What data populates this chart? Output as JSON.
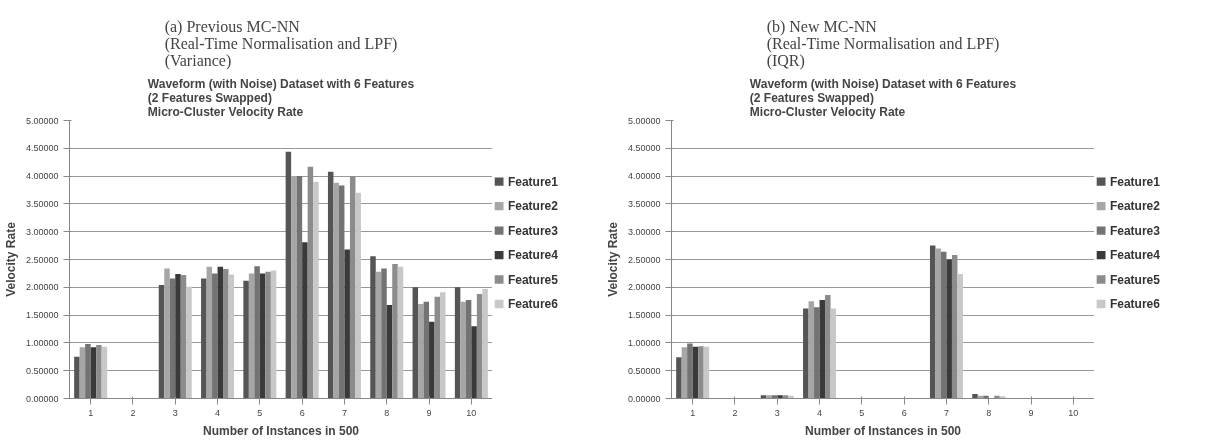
{
  "chart_data": [
    {
      "type": "bar",
      "title": "(a) Previous MC-NN\n(Real-Time Normalisation and LPF)\n(Variance)",
      "subtitle": "Waveform (with Noise) Dataset with 6 Features\n(2 Features Swapped)\nMicro-Cluster Velocity Rate",
      "xlabel": "Number of Instances in 500",
      "ylabel": "Velocity Rate",
      "categories": [
        "1",
        "2",
        "3",
        "4",
        "5",
        "6",
        "7",
        "8",
        "9",
        "10"
      ],
      "series": [
        {
          "name": "Feature1",
          "color": "#555555",
          "values": [
            0.75,
            0,
            2.04,
            2.16,
            2.12,
            4.44,
            4.08,
            2.56,
            2.0,
            2.0
          ]
        },
        {
          "name": "Feature2",
          "color": "#a6a6a6",
          "values": [
            0.92,
            0,
            2.34,
            2.37,
            2.25,
            4.0,
            3.88,
            2.28,
            1.7,
            1.74
          ]
        },
        {
          "name": "Feature3",
          "color": "#737373",
          "values": [
            0.98,
            0,
            2.16,
            2.25,
            2.38,
            4.0,
            3.83,
            2.34,
            1.74,
            1.77
          ]
        },
        {
          "name": "Feature4",
          "color": "#3a3a3a",
          "values": [
            0.92,
            0,
            2.24,
            2.37,
            2.25,
            2.81,
            2.68,
            1.68,
            1.38,
            1.3
          ]
        },
        {
          "name": "Feature5",
          "color": "#8c8c8c",
          "values": [
            0.96,
            0,
            2.22,
            2.33,
            2.28,
            4.17,
            4.0,
            2.42,
            1.83,
            1.88
          ]
        },
        {
          "name": "Feature6",
          "color": "#c8c8c8",
          "values": [
            0.93,
            0,
            2.01,
            2.23,
            2.3,
            3.9,
            3.7,
            2.37,
            1.91,
            1.97
          ]
        }
      ],
      "ylim": [
        0,
        5
      ],
      "yticks": [
        {
          "value": 0,
          "label": "0.00000"
        },
        {
          "value": 0.5,
          "label": "0.50000"
        },
        {
          "value": 1,
          "label": "1.00000"
        },
        {
          "value": 1.5,
          "label": "1.50000"
        },
        {
          "value": 2,
          "label": "2.00000"
        },
        {
          "value": 2.5,
          "label": "2.50000"
        },
        {
          "value": 3,
          "label": "3.00000"
        },
        {
          "value": 3.5,
          "label": "3.50000"
        },
        {
          "value": 4,
          "label": "4.00000"
        },
        {
          "value": 4.5,
          "label": "4.50000"
        },
        {
          "value": 5,
          "label": "5.00000"
        }
      ],
      "grid": "y",
      "legend": "right"
    },
    {
      "type": "bar",
      "title": "(b) New MC-NN\n(Real-Time Normalisation and LPF)\n(IQR)",
      "subtitle": "Waveform (with Noise) Dataset with 6 Features\n(2 Features Swapped)\nMicro-Cluster Velocity Rate",
      "xlabel": "Number of Instances in 500",
      "ylabel": "Velocity Rate",
      "categories": [
        "1",
        "2",
        "3",
        "4",
        "5",
        "6",
        "7",
        "8",
        "9",
        "10"
      ],
      "series": [
        {
          "name": "Feature1",
          "color": "#555555",
          "values": [
            0.74,
            0,
            0.06,
            1.62,
            0,
            0,
            2.75,
            0.08,
            0,
            0
          ]
        },
        {
          "name": "Feature2",
          "color": "#a6a6a6",
          "values": [
            0.92,
            0,
            0.06,
            1.75,
            0,
            0,
            2.7,
            0.05,
            0,
            0
          ]
        },
        {
          "name": "Feature3",
          "color": "#737373",
          "values": [
            0.99,
            0,
            0.06,
            1.64,
            0,
            0,
            2.64,
            0.05,
            0,
            0
          ]
        },
        {
          "name": "Feature4",
          "color": "#3a3a3a",
          "values": [
            0.93,
            0,
            0.06,
            1.77,
            0,
            0,
            2.5,
            0,
            0,
            0
          ]
        },
        {
          "name": "Feature5",
          "color": "#8c8c8c",
          "values": [
            0.94,
            0,
            0.06,
            1.86,
            0,
            0,
            2.58,
            0.05,
            0,
            0
          ]
        },
        {
          "name": "Feature6",
          "color": "#c8c8c8",
          "values": [
            0.93,
            0,
            0.05,
            1.62,
            0,
            0,
            2.24,
            0.04,
            0,
            0
          ]
        }
      ],
      "ylim": [
        0,
        5
      ],
      "yticks": [
        {
          "value": 0,
          "label": "0.00000"
        },
        {
          "value": 0.5,
          "label": "0.50000"
        },
        {
          "value": 1,
          "label": "1.00000"
        },
        {
          "value": 1.5,
          "label": "1.50000"
        },
        {
          "value": 2,
          "label": "2.00000"
        },
        {
          "value": 2.5,
          "label": "2.50000"
        },
        {
          "value": 3,
          "label": "3.00000"
        },
        {
          "value": 3.5,
          "label": "3.50000"
        },
        {
          "value": 4,
          "label": "4.00000"
        },
        {
          "value": 4.5,
          "label": "4.50000"
        },
        {
          "value": 5,
          "label": "5.00000"
        }
      ],
      "grid": "y",
      "legend": "right"
    }
  ]
}
